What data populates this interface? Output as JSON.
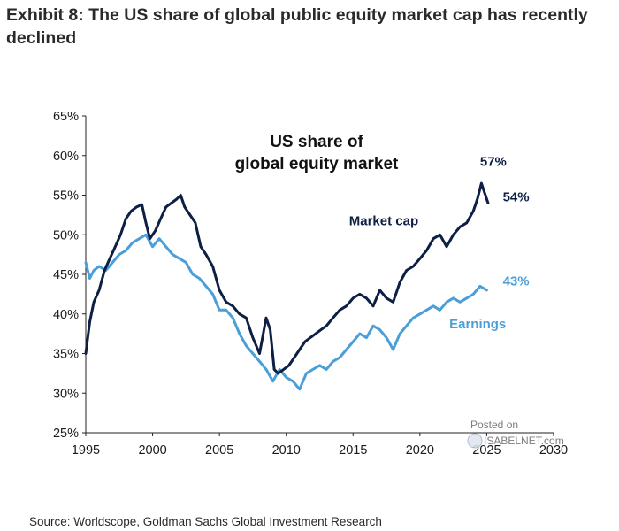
{
  "exhibit_title": "Exhibit 8: The US share of global public equity market cap has recently declined",
  "source": "Source: Worldscope, Goldman Sachs Global Investment Research",
  "watermark": {
    "line1": "Posted on",
    "line2": "ISABELNET.com"
  },
  "chart_data": {
    "type": "line",
    "title": "US share of global equity market",
    "title_lines": [
      "US share of",
      "global equity market"
    ],
    "xlabel": "",
    "ylabel": "",
    "xlim": [
      1995,
      2030
    ],
    "ylim": [
      25,
      65
    ],
    "x_ticks": [
      1995,
      2000,
      2005,
      2010,
      2015,
      2020,
      2025,
      2030
    ],
    "y_ticks": [
      25,
      30,
      35,
      40,
      45,
      50,
      55,
      60,
      65
    ],
    "y_tick_labels": [
      "25%",
      "30%",
      "35%",
      "40%",
      "45%",
      "50%",
      "55%",
      "60%",
      "65%"
    ],
    "grid": false,
    "legend": "none",
    "series": [
      {
        "name": "Market cap",
        "color": "#0d1f45",
        "x": [
          1995.0,
          1995.3,
          1995.6,
          1996.0,
          1996.4,
          1996.8,
          1997.2,
          1997.6,
          1998.0,
          1998.4,
          1998.8,
          1999.2,
          1999.5,
          1999.8,
          2000.2,
          2000.6,
          2001.0,
          2001.4,
          2001.8,
          2002.1,
          2002.4,
          2002.8,
          2003.2,
          2003.6,
          2004.0,
          2004.5,
          2005.0,
          2005.5,
          2006.0,
          2006.5,
          2007.0,
          2007.5,
          2008.0,
          2008.5,
          2008.8,
          2009.1,
          2009.4,
          2009.8,
          2010.2,
          2010.6,
          2011.0,
          2011.4,
          2011.8,
          2012.2,
          2012.6,
          2013.0,
          2013.5,
          2014.0,
          2014.5,
          2015.0,
          2015.5,
          2016.0,
          2016.5,
          2017.0,
          2017.5,
          2018.0,
          2018.5,
          2019.0,
          2019.5,
          2020.0,
          2020.5,
          2021.0,
          2021.5,
          2022.0,
          2022.5,
          2023.0,
          2023.5,
          2024.0,
          2024.3,
          2024.6,
          2024.9,
          2025.1
        ],
        "values": [
          35.0,
          39.0,
          41.5,
          43.0,
          45.5,
          47.0,
          48.5,
          50.0,
          52.0,
          53.0,
          53.5,
          53.8,
          51.5,
          49.5,
          50.5,
          52.0,
          53.5,
          54.0,
          54.5,
          55.0,
          53.5,
          52.5,
          51.5,
          48.5,
          47.5,
          46.0,
          43.0,
          41.5,
          41.0,
          40.0,
          39.5,
          37.0,
          35.0,
          39.5,
          38.0,
          33.0,
          32.5,
          33.0,
          33.5,
          34.5,
          35.5,
          36.5,
          37.0,
          37.5,
          38.0,
          38.5,
          39.5,
          40.5,
          41.0,
          42.0,
          42.5,
          42.0,
          41.0,
          43.0,
          42.0,
          41.5,
          44.0,
          45.5,
          46.0,
          47.0,
          48.0,
          49.5,
          50.0,
          48.5,
          50.0,
          51.0,
          51.5,
          53.0,
          54.5,
          56.5,
          55.0,
          54.0
        ]
      },
      {
        "name": "Earnings",
        "color": "#4a9fd8",
        "x": [
          1995.0,
          1995.3,
          1995.6,
          1996.0,
          1996.5,
          1997.0,
          1997.5,
          1998.0,
          1998.5,
          1999.0,
          1999.5,
          2000.0,
          2000.5,
          2001.0,
          2001.5,
          2002.0,
          2002.5,
          2003.0,
          2003.5,
          2004.0,
          2004.5,
          2005.0,
          2005.5,
          2006.0,
          2006.5,
          2007.0,
          2007.5,
          2008.0,
          2008.5,
          2009.0,
          2009.5,
          2010.0,
          2010.5,
          2011.0,
          2011.5,
          2012.0,
          2012.5,
          2013.0,
          2013.5,
          2014.0,
          2014.5,
          2015.0,
          2015.5,
          2016.0,
          2016.5,
          2017.0,
          2017.5,
          2018.0,
          2018.5,
          2019.0,
          2019.5,
          2020.0,
          2020.5,
          2021.0,
          2021.5,
          2022.0,
          2022.5,
          2023.0,
          2023.5,
          2024.0,
          2024.5,
          2025.0
        ],
        "values": [
          46.5,
          44.5,
          45.5,
          46.0,
          45.5,
          46.5,
          47.5,
          48.0,
          49.0,
          49.5,
          50.0,
          48.5,
          49.5,
          48.5,
          47.5,
          47.0,
          46.5,
          45.0,
          44.5,
          43.5,
          42.5,
          40.5,
          40.5,
          39.5,
          37.5,
          36.0,
          35.0,
          34.0,
          33.0,
          31.5,
          33.0,
          32.0,
          31.5,
          30.5,
          32.5,
          33.0,
          33.5,
          33.0,
          34.0,
          34.5,
          35.5,
          36.5,
          37.5,
          37.0,
          38.5,
          38.0,
          37.0,
          35.5,
          37.5,
          38.5,
          39.5,
          40.0,
          40.5,
          41.0,
          40.5,
          41.5,
          42.0,
          41.5,
          42.0,
          42.5,
          43.5,
          43.0
        ]
      }
    ],
    "annotations": [
      {
        "text": "Market cap",
        "series": 0,
        "x": 2014.7,
        "y": 51.2
      },
      {
        "text": "Earnings",
        "series": 1,
        "x": 2022.2,
        "y": 38.2
      },
      {
        "text": "57%",
        "series": 0,
        "x": 2024.5,
        "y": 58.7
      },
      {
        "text": "54%",
        "series": 0,
        "x": 2026.2,
        "y": 54.2
      },
      {
        "text": "43%",
        "series": 1,
        "x": 2026.2,
        "y": 43.6
      }
    ]
  }
}
